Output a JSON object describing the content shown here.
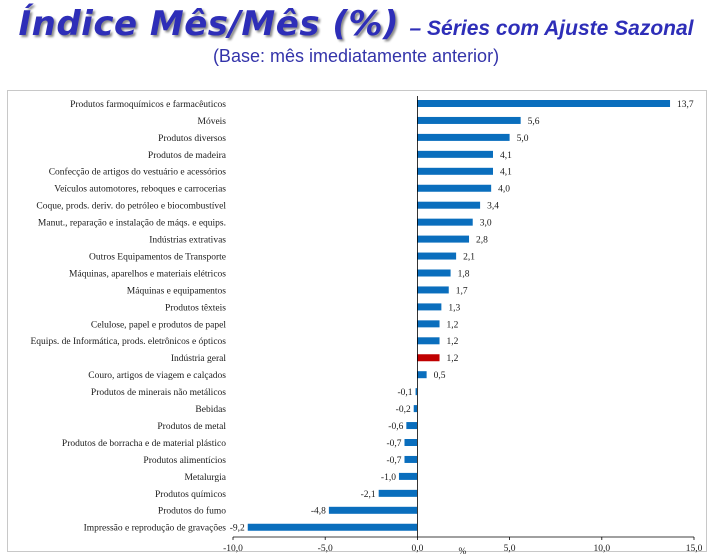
{
  "header": {
    "title": "Índice Mês/Mês (%)",
    "title_suffix": "– Séries com Ajuste Sazonal",
    "subtitle": "(Base: mês imediatamente anterior)"
  },
  "chart_data": {
    "type": "bar",
    "orientation": "horizontal",
    "title": "Índice Mês/Mês (%)",
    "subtitle": "(Base: mês imediatamente anterior)",
    "xlabel": "%",
    "ylabel": "",
    "xlim": [
      -10,
      15
    ],
    "xticks": [
      "-10,0",
      "-5,0",
      "0,0",
      "5,0",
      "10,0",
      "15,0"
    ],
    "grid": false,
    "legend": "none",
    "colors": {
      "bar": "#0a6ebd",
      "highlight": "#c00000"
    },
    "highlight_category": "Indústria geral",
    "categories": [
      "Produtos farmoquímicos e farmacêuticos",
      "Móveis",
      "Produtos diversos",
      "Produtos de madeira",
      "Confecção de artigos do vestuário e acessórios",
      "Veículos automotores, reboques e carrocerias",
      "Coque, prods. deriv. do petróleo e biocombustível",
      "Manut., reparação e instalação de máqs. e equips.",
      "Indústrias extrativas",
      "Outros Equipamentos de Transporte",
      "Máquinas, aparelhos e materiais elétricos",
      "Máquinas e equipamentos",
      "Produtos têxteis",
      "Celulose, papel e produtos de papel",
      "Equips. de Informática, prods. eletrônicos e ópticos",
      "Indústria geral",
      "Couro, artigos de viagem e calçados",
      "Produtos de minerais não metálicos",
      "Bebidas",
      "Produtos de metal",
      "Produtos de borracha e de material plástico",
      "Produtos alimentícios",
      "Metalurgia",
      "Produtos químicos",
      "Produtos do fumo",
      "Impressão e reprodução de gravações"
    ],
    "values": [
      13.7,
      5.6,
      5.0,
      4.1,
      4.1,
      4.0,
      3.4,
      3.0,
      2.8,
      2.1,
      1.8,
      1.7,
      1.3,
      1.2,
      1.2,
      1.2,
      0.5,
      -0.1,
      -0.2,
      -0.6,
      -0.7,
      -0.7,
      -1.0,
      -2.1,
      -4.8,
      -9.2
    ],
    "value_labels": [
      "13,7",
      "5,6",
      "5,0",
      "4,1",
      "4,1",
      "4,0",
      "3,4",
      "3,0",
      "2,8",
      "2,1",
      "1,8",
      "1,7",
      "1,3",
      "1,2",
      "1,2",
      "1,2",
      "0,5",
      "-0,1",
      "-0,2",
      "-0,6",
      "-0,7",
      "-0,7",
      "-1,0",
      "-2,1",
      "-4,8",
      "-9,2"
    ]
  }
}
